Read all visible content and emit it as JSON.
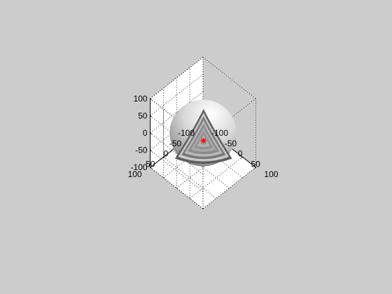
{
  "figure": {
    "background_color": "#cccccc",
    "axes_color": "#ffffff"
  },
  "chart_data": {
    "type": "surface3d",
    "title": "",
    "xlabel": "",
    "ylabel": "",
    "zlabel": "",
    "grid": true,
    "box": true,
    "view": {
      "azimuth_deg": -37.5,
      "elevation_deg": 30
    },
    "xlim": [
      -100,
      100
    ],
    "ylim": [
      -100,
      100
    ],
    "zlim": [
      -100,
      100
    ],
    "x_ticks": [
      {
        "value": -100,
        "label": "-100"
      },
      {
        "value": -50,
        "label": "-50"
      },
      {
        "value": 0,
        "label": "0"
      },
      {
        "value": 50,
        "label": "50"
      },
      {
        "value": 100,
        "label": "100"
      }
    ],
    "y_ticks": [
      {
        "value": -100,
        "label": "-100"
      },
      {
        "value": -50,
        "label": "-50"
      },
      {
        "value": 0,
        "label": "0"
      },
      {
        "value": 50,
        "label": "50"
      },
      {
        "value": 100,
        "label": "100"
      }
    ],
    "z_ticks": [
      {
        "value": -100,
        "label": "-100"
      },
      {
        "value": -50,
        "label": "-50"
      },
      {
        "value": 0,
        "label": "0"
      },
      {
        "value": 50,
        "label": "50"
      },
      {
        "value": 100,
        "label": "100"
      }
    ],
    "surfaces": [
      {
        "shape": "sphere",
        "radius": 100,
        "cutaway_octant": "+x+y+z"
      },
      {
        "shape": "sphere",
        "radius": 80,
        "cutaway_octant": "+x+y+z"
      },
      {
        "shape": "sphere",
        "radius": 60,
        "cutaway_octant": "+x+y+z"
      },
      {
        "shape": "sphere",
        "radius": 40,
        "cutaway_octant": "+x+y+z"
      },
      {
        "shape": "sphere",
        "radius": 20,
        "cutaway_octant": "+x+y+z"
      }
    ],
    "colormap": "gray",
    "marker": {
      "x": 0,
      "y": 0,
      "z": 0,
      "symbol": "*",
      "color": "#ff0000"
    }
  }
}
